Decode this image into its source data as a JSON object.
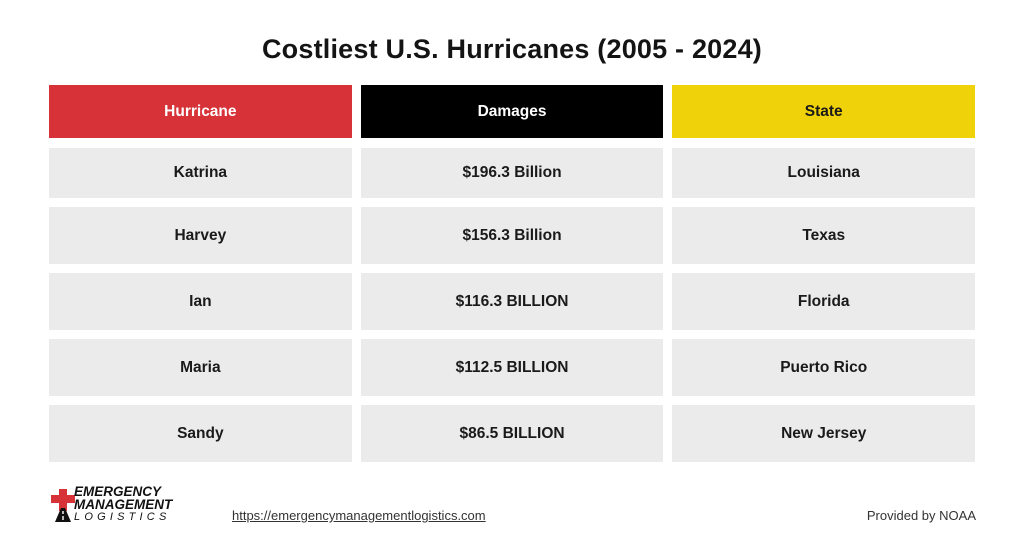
{
  "title": "Costliest U.S. Hurricanes (2005 - 2024)",
  "chart_data": {
    "type": "table",
    "title": "Costliest U.S. Hurricanes (2005 - 2024)",
    "columns": [
      "Hurricane",
      "Damages",
      "State"
    ],
    "rows": [
      [
        "Katrina",
        "$196.3 Billion",
        "Louisiana"
      ],
      [
        "Harvey",
        "$156.3 Billion",
        "Texas"
      ],
      [
        "Ian",
        "$116.3 BILLION",
        "Florida"
      ],
      [
        "Maria",
        "$112.5 BILLION",
        "Puerto Rico"
      ],
      [
        "Sandy",
        "$86.5 BILLION",
        "New Jersey"
      ]
    ],
    "header_colors": [
      "#d63237",
      "#000000",
      "#f0d20a"
    ]
  },
  "footer": {
    "logo_lines": [
      "EMERGENCY",
      "MANAGEMENT",
      "LOGISTICS"
    ],
    "logo_icon": "red-cross-road-icon",
    "url": "https://emergencymanagementlogistics.com",
    "credit": "Provided by NOAA"
  }
}
